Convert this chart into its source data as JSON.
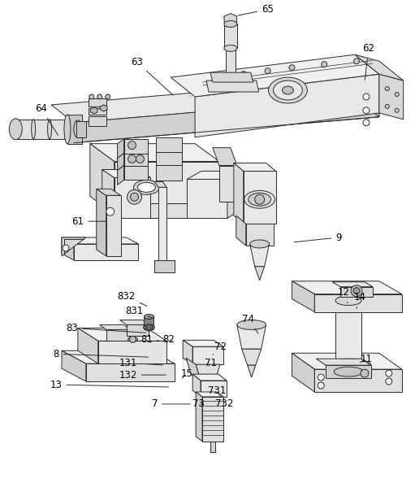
{
  "bg_color": "#ffffff",
  "line_color": "#2a2a2a",
  "line_width": 0.7,
  "figsize": [
    5.11,
    5.94
  ],
  "dpi": 100,
  "ann_data": [
    [
      "65",
      291,
      18,
      330,
      10
    ],
    [
      "62",
      450,
      100,
      455,
      58
    ],
    [
      "63",
      215,
      118,
      168,
      75
    ],
    [
      "64",
      72,
      168,
      50,
      133
    ],
    [
      "61",
      132,
      272,
      95,
      272
    ],
    [
      "9",
      360,
      298,
      418,
      292
    ],
    [
      "832",
      183,
      378,
      155,
      365
    ],
    [
      "831",
      190,
      393,
      165,
      383
    ],
    [
      "83",
      182,
      410,
      88,
      404
    ],
    [
      "81",
      198,
      420,
      180,
      418
    ],
    [
      "82",
      212,
      420,
      207,
      418
    ],
    [
      "8",
      185,
      440,
      68,
      436
    ],
    [
      "131",
      203,
      450,
      157,
      447
    ],
    [
      "132",
      207,
      462,
      157,
      462
    ],
    [
      "13",
      210,
      477,
      68,
      474
    ],
    [
      "15",
      222,
      468,
      230,
      460
    ],
    [
      "72",
      262,
      437,
      272,
      427
    ],
    [
      "71",
      255,
      453,
      260,
      447
    ],
    [
      "7",
      237,
      498,
      190,
      498
    ],
    [
      "73",
      252,
      498,
      244,
      498
    ],
    [
      "731",
      273,
      490,
      267,
      482
    ],
    [
      "732",
      282,
      498,
      276,
      498
    ],
    [
      "74",
      320,
      413,
      306,
      393
    ],
    [
      "12",
      430,
      376,
      424,
      360
    ],
    [
      "14",
      440,
      380,
      444,
      366
    ],
    [
      "11",
      442,
      448,
      452,
      442
    ]
  ]
}
